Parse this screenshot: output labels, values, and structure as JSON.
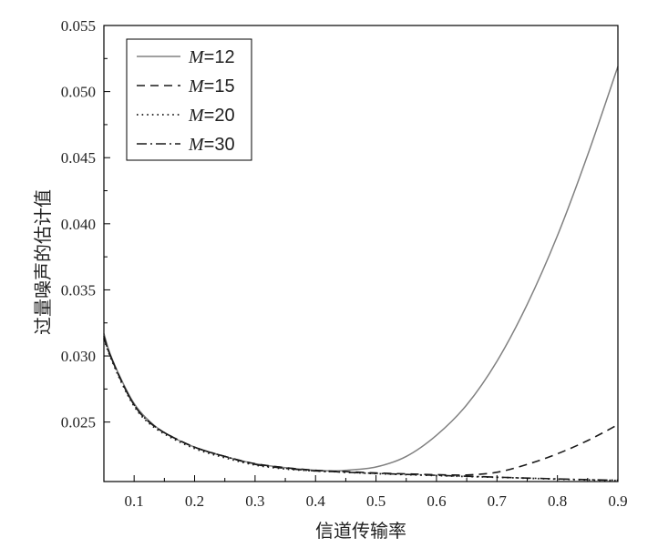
{
  "chart_data": {
    "type": "line",
    "title": "",
    "xlabel": "信道传输率",
    "ylabel": "过量噪声的估计值",
    "xlim": [
      0.05,
      0.9
    ],
    "ylim": [
      0.0205,
      0.055
    ],
    "x_ticks": [
      0.1,
      0.2,
      0.3,
      0.4,
      0.5,
      0.6,
      0.7,
      0.8,
      0.9
    ],
    "x_tick_labels": [
      "0.1",
      "0.2",
      "0.3",
      "0.4",
      "0.5",
      "0.6",
      "0.7",
      "0.8",
      "0.9"
    ],
    "y_ticks": [
      0.025,
      0.03,
      0.035,
      0.04,
      0.045,
      0.05,
      0.055
    ],
    "y_tick_labels": [
      "0.025",
      "0.030",
      "0.035",
      "0.040",
      "0.045",
      "0.050",
      "0.055"
    ],
    "legend_position": "top-left",
    "grid": false,
    "x": [
      0.05,
      0.06,
      0.08,
      0.1,
      0.12,
      0.15,
      0.2,
      0.25,
      0.3,
      0.35,
      0.4,
      0.43,
      0.45,
      0.5,
      0.55,
      0.6,
      0.65,
      0.7,
      0.75,
      0.8,
      0.85,
      0.9
    ],
    "series": [
      {
        "name": "M=12",
        "label_var": "M",
        "label_val": "=12",
        "style": "solid",
        "color": "#808080",
        "values": [
          0.0317,
          0.0302,
          0.0281,
          0.0264,
          0.0253,
          0.0242,
          0.0231,
          0.0224,
          0.02185,
          0.02155,
          0.02135,
          0.0213,
          0.02135,
          0.0216,
          0.0224,
          0.024,
          0.0263,
          0.0296,
          0.0339,
          0.0391,
          0.0452,
          0.0519
        ]
      },
      {
        "name": "M=15",
        "label_var": "M",
        "label_val": "=15",
        "style": "dashed",
        "color": "#1a1a1a",
        "values": [
          0.0315,
          0.0301,
          0.028,
          0.0263,
          0.0252,
          0.0242,
          0.0231,
          0.0224,
          0.02185,
          0.02155,
          0.02135,
          0.02128,
          0.02125,
          0.02115,
          0.02108,
          0.02102,
          0.021,
          0.0212,
          0.0218,
          0.0226,
          0.0236,
          0.0248
        ]
      },
      {
        "name": "M=20",
        "label_var": "M",
        "label_val": "=20",
        "style": "dotted",
        "color": "#1a1a1a",
        "values": [
          0.0313,
          0.03,
          0.0279,
          0.0262,
          0.0251,
          0.0241,
          0.023,
          0.0223,
          0.02175,
          0.02145,
          0.0213,
          0.02125,
          0.0212,
          0.0211,
          0.02102,
          0.02095,
          0.02088,
          0.02082,
          0.02075,
          0.02068,
          0.02062,
          0.02058
        ]
      },
      {
        "name": "M=30",
        "label_var": "M",
        "label_val": "=30",
        "style": "dashdot",
        "color": "#1a1a1a",
        "values": [
          0.0314,
          0.0301,
          0.028,
          0.0263,
          0.0252,
          0.0242,
          0.0231,
          0.0224,
          0.0218,
          0.0215,
          0.0213,
          0.02125,
          0.0212,
          0.02112,
          0.02104,
          0.02097,
          0.0209,
          0.02083,
          0.02076,
          0.0207,
          0.02064,
          0.0206
        ]
      }
    ]
  }
}
